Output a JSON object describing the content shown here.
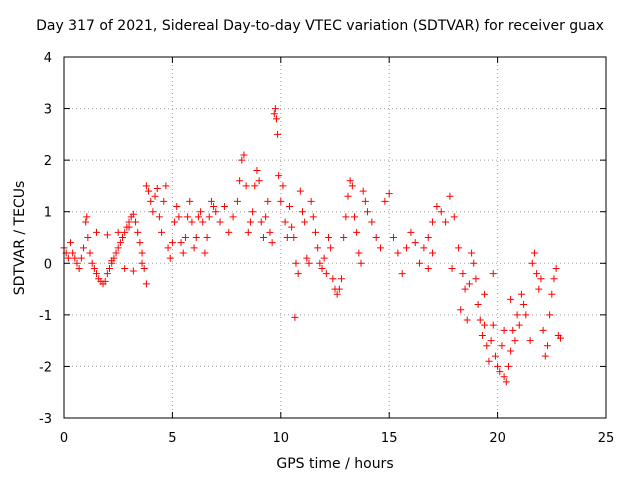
{
  "chart_data": {
    "type": "scatter",
    "title": "Day 317 of 2021, Sidereal Day-to-day VTEC variation (SDTVAR) for receiver guax",
    "xlabel": "GPS time / hours",
    "ylabel": "SDTVAR / TECUs",
    "xlim": [
      0,
      25
    ],
    "ylim": [
      -3,
      4
    ],
    "xticks": [
      "0",
      "5",
      "10",
      "15",
      "20",
      "25"
    ],
    "yticks": [
      "-3",
      "-2",
      "-1",
      "0",
      "1",
      "2",
      "3",
      "4"
    ],
    "grid": true,
    "marker": "+",
    "marker_color": "#ff0000",
    "series": [
      {
        "name": "SDTVAR",
        "points": [
          [
            0.0,
            0.3
          ],
          [
            0.1,
            0.2
          ],
          [
            0.2,
            0.1
          ],
          [
            0.3,
            0.4
          ],
          [
            0.4,
            0.2
          ],
          [
            0.5,
            0.1
          ],
          [
            0.6,
            0.0
          ],
          [
            0.7,
            -0.1
          ],
          [
            0.8,
            0.1
          ],
          [
            0.9,
            0.3
          ],
          [
            1.0,
            0.8
          ],
          [
            1.05,
            0.9
          ],
          [
            1.1,
            0.5
          ],
          [
            1.2,
            0.2
          ],
          [
            1.3,
            0.0
          ],
          [
            1.4,
            -0.1
          ],
          [
            1.5,
            -0.2
          ],
          [
            1.6,
            -0.3
          ],
          [
            1.7,
            -0.35
          ],
          [
            1.8,
            -0.4
          ],
          [
            1.9,
            -0.35
          ],
          [
            2.0,
            -0.2
          ],
          [
            2.1,
            -0.1
          ],
          [
            2.2,
            0.0
          ],
          [
            2.3,
            0.1
          ],
          [
            2.4,
            0.2
          ],
          [
            2.5,
            0.3
          ],
          [
            2.6,
            0.4
          ],
          [
            2.7,
            0.5
          ],
          [
            2.8,
            0.6
          ],
          [
            2.9,
            0.7
          ],
          [
            3.0,
            0.8
          ],
          [
            3.1,
            0.9
          ],
          [
            3.2,
            0.95
          ],
          [
            3.3,
            0.8
          ],
          [
            3.4,
            0.6
          ],
          [
            3.5,
            0.4
          ],
          [
            3.6,
            0.2
          ],
          [
            1.5,
            0.6
          ],
          [
            2.0,
            0.55
          ],
          [
            2.5,
            0.6
          ],
          [
            3.0,
            0.7
          ],
          [
            2.2,
            0.05
          ],
          [
            2.8,
            -0.1
          ],
          [
            3.2,
            -0.15
          ],
          [
            3.6,
            0.0
          ],
          [
            3.7,
            -0.1
          ],
          [
            3.8,
            -0.4
          ],
          [
            3.8,
            1.5
          ],
          [
            3.9,
            1.4
          ],
          [
            4.0,
            1.2
          ],
          [
            4.1,
            1.0
          ],
          [
            4.2,
            1.3
          ],
          [
            4.3,
            1.45
          ],
          [
            4.4,
            0.9
          ],
          [
            4.5,
            0.6
          ],
          [
            4.6,
            1.2
          ],
          [
            4.7,
            1.5
          ],
          [
            4.8,
            0.3
          ],
          [
            4.9,
            0.1
          ],
          [
            5.0,
            0.4
          ],
          [
            5.1,
            0.8
          ],
          [
            5.2,
            1.1
          ],
          [
            5.3,
            0.9
          ],
          [
            5.4,
            0.4
          ],
          [
            5.5,
            0.2
          ],
          [
            5.6,
            0.5
          ],
          [
            5.7,
            0.9
          ],
          [
            5.8,
            1.2
          ],
          [
            5.9,
            0.8
          ],
          [
            6.0,
            0.3
          ],
          [
            6.1,
            0.5
          ],
          [
            6.2,
            0.9
          ],
          [
            6.3,
            1.0
          ],
          [
            6.4,
            0.8
          ],
          [
            6.5,
            0.2
          ],
          [
            6.6,
            0.5
          ],
          [
            6.7,
            0.9
          ],
          [
            6.8,
            1.2
          ],
          [
            6.9,
            1.1
          ],
          [
            7.0,
            1.0
          ],
          [
            7.2,
            0.8
          ],
          [
            7.4,
            1.1
          ],
          [
            7.6,
            0.6
          ],
          [
            7.8,
            0.9
          ],
          [
            8.0,
            1.2
          ],
          [
            8.1,
            1.6
          ],
          [
            8.2,
            2.0
          ],
          [
            8.3,
            2.1
          ],
          [
            8.4,
            1.5
          ],
          [
            8.5,
            0.6
          ],
          [
            8.6,
            0.8
          ],
          [
            8.7,
            1.0
          ],
          [
            8.8,
            1.5
          ],
          [
            8.9,
            1.8
          ],
          [
            9.0,
            1.6
          ],
          [
            9.1,
            0.8
          ],
          [
            9.2,
            0.5
          ],
          [
            9.3,
            0.9
          ],
          [
            9.4,
            1.2
          ],
          [
            9.5,
            0.6
          ],
          [
            9.6,
            0.4
          ],
          [
            9.7,
            2.9
          ],
          [
            9.75,
            3.0
          ],
          [
            9.8,
            2.8
          ],
          [
            9.85,
            2.5
          ],
          [
            9.9,
            1.7
          ],
          [
            10.0,
            1.2
          ],
          [
            10.1,
            1.5
          ],
          [
            10.2,
            0.8
          ],
          [
            10.3,
            0.5
          ],
          [
            10.4,
            1.1
          ],
          [
            10.5,
            0.7
          ],
          [
            10.6,
            0.5
          ],
          [
            10.7,
            0.0
          ],
          [
            10.8,
            -0.2
          ],
          [
            10.65,
            -1.05
          ],
          [
            10.9,
            1.4
          ],
          [
            11.0,
            1.0
          ],
          [
            11.1,
            0.8
          ],
          [
            11.2,
            0.1
          ],
          [
            11.3,
            0.0
          ],
          [
            11.4,
            1.2
          ],
          [
            11.5,
            0.9
          ],
          [
            11.6,
            0.6
          ],
          [
            11.7,
            0.3
          ],
          [
            11.8,
            0.0
          ],
          [
            11.9,
            -0.1
          ],
          [
            12.0,
            0.1
          ],
          [
            12.1,
            -0.2
          ],
          [
            12.2,
            0.5
          ],
          [
            12.3,
            0.3
          ],
          [
            12.4,
            -0.3
          ],
          [
            12.5,
            -0.5
          ],
          [
            12.6,
            -0.6
          ],
          [
            12.7,
            -0.5
          ],
          [
            12.8,
            -0.3
          ],
          [
            12.9,
            0.5
          ],
          [
            13.0,
            0.9
          ],
          [
            13.1,
            1.3
          ],
          [
            13.2,
            1.6
          ],
          [
            13.3,
            1.5
          ],
          [
            13.4,
            0.9
          ],
          [
            13.5,
            0.6
          ],
          [
            13.6,
            0.2
          ],
          [
            13.7,
            0.0
          ],
          [
            13.8,
            1.4
          ],
          [
            13.9,
            1.2
          ],
          [
            14.0,
            1.0
          ],
          [
            14.2,
            0.8
          ],
          [
            14.4,
            0.5
          ],
          [
            14.6,
            0.3
          ],
          [
            14.8,
            1.2
          ],
          [
            15.0,
            1.35
          ],
          [
            15.2,
            0.5
          ],
          [
            15.4,
            0.2
          ],
          [
            15.6,
            -0.2
          ],
          [
            15.8,
            0.3
          ],
          [
            16.0,
            0.6
          ],
          [
            16.2,
            0.4
          ],
          [
            16.4,
            0.0
          ],
          [
            16.6,
            0.3
          ],
          [
            16.8,
            0.5
          ],
          [
            17.0,
            0.8
          ],
          [
            17.2,
            1.1
          ],
          [
            17.4,
            1.0
          ],
          [
            17.6,
            0.8
          ],
          [
            17.8,
            1.3
          ],
          [
            18.0,
            0.9
          ],
          [
            18.2,
            0.3
          ],
          [
            18.4,
            -0.2
          ],
          [
            18.5,
            -0.5
          ],
          [
            18.6,
            -1.1
          ],
          [
            18.7,
            -0.4
          ],
          [
            18.8,
            0.2
          ],
          [
            18.9,
            0.0
          ],
          [
            19.0,
            -0.3
          ],
          [
            19.1,
            -0.8
          ],
          [
            19.2,
            -1.1
          ],
          [
            19.3,
            -1.4
          ],
          [
            19.4,
            -1.2
          ],
          [
            19.5,
            -1.6
          ],
          [
            19.6,
            -1.9
          ],
          [
            19.7,
            -1.5
          ],
          [
            19.8,
            -1.2
          ],
          [
            19.9,
            -1.8
          ],
          [
            20.0,
            -2.0
          ],
          [
            20.1,
            -2.1
          ],
          [
            20.2,
            -1.6
          ],
          [
            20.3,
            -2.2
          ],
          [
            20.4,
            -2.3
          ],
          [
            20.5,
            -2.0
          ],
          [
            20.6,
            -1.7
          ],
          [
            20.7,
            -1.3
          ],
          [
            20.8,
            -1.5
          ],
          [
            20.9,
            -1.0
          ],
          [
            21.0,
            -1.2
          ],
          [
            21.1,
            -0.6
          ],
          [
            21.2,
            -0.8
          ],
          [
            21.3,
            -1.0
          ],
          [
            21.5,
            -1.5
          ],
          [
            21.6,
            0.0
          ],
          [
            21.7,
            0.2
          ],
          [
            21.8,
            -0.2
          ],
          [
            21.9,
            -0.5
          ],
          [
            22.0,
            -0.3
          ],
          [
            22.1,
            -1.3
          ],
          [
            22.2,
            -1.8
          ],
          [
            22.3,
            -1.6
          ],
          [
            22.4,
            -1.0
          ],
          [
            22.5,
            -0.6
          ],
          [
            22.6,
            -0.3
          ],
          [
            22.7,
            -0.1
          ],
          [
            22.8,
            -1.4
          ],
          [
            22.9,
            -1.45
          ],
          [
            19.8,
            -0.2
          ],
          [
            20.3,
            -1.3
          ],
          [
            20.6,
            -0.7
          ],
          [
            19.4,
            -0.6
          ],
          [
            17.9,
            -0.1
          ],
          [
            18.3,
            -0.9
          ],
          [
            17.0,
            0.2
          ],
          [
            16.8,
            -0.1
          ]
        ]
      }
    ]
  }
}
